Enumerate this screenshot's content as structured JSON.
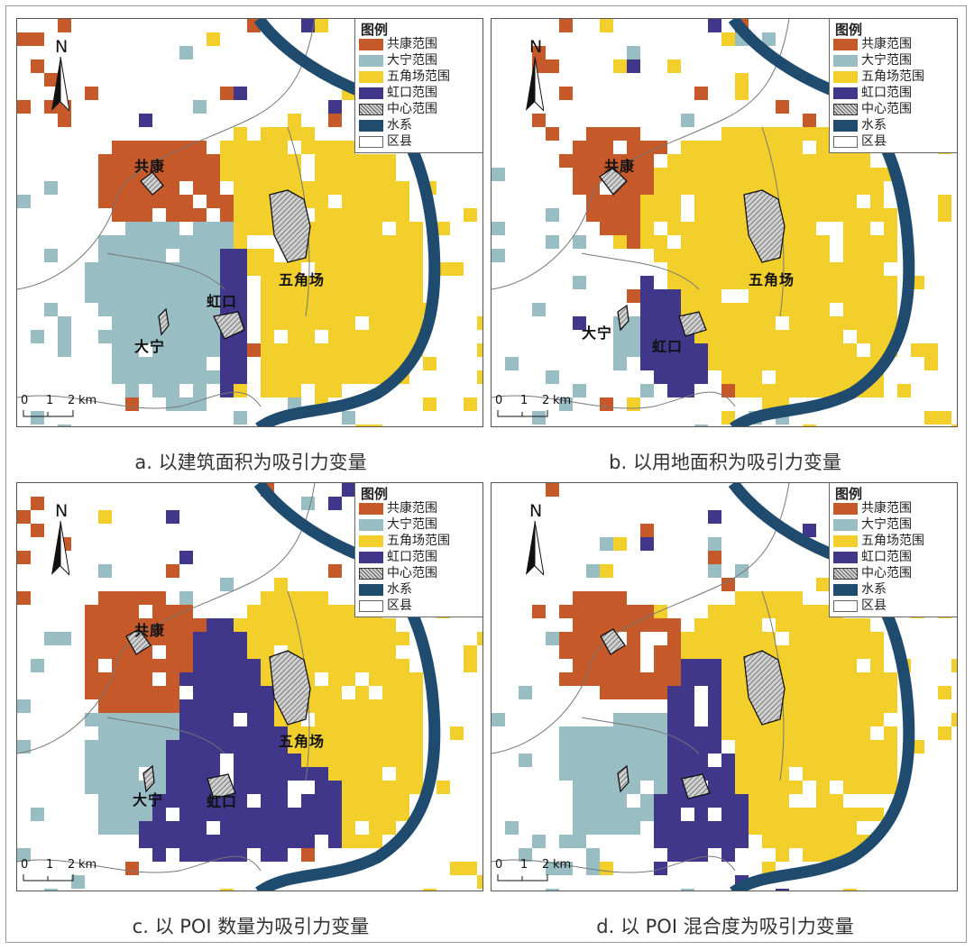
{
  "legend": {
    "title": "图例",
    "items": [
      {
        "key": "gongkang",
        "label": "共康范围",
        "color": "#c5592a"
      },
      {
        "key": "daning",
        "label": "大宁范围",
        "color": "#98bec4"
      },
      {
        "key": "wujiaochang",
        "label": "五角场范围",
        "color": "#f2cf2a"
      },
      {
        "key": "hongkou",
        "label": "虹口范围",
        "color": "#40368a"
      },
      {
        "key": "center",
        "label": "中心范围",
        "color": "#b5b5b5"
      },
      {
        "key": "water",
        "label": "水系",
        "color": "#1f4b6e"
      },
      {
        "key": "district",
        "label": "区县",
        "color": "#ffffff"
      }
    ]
  },
  "north_label": "N",
  "scale": {
    "t0": "0",
    "t1": "1",
    "t2": "2",
    "unit": "km"
  },
  "panels": [
    {
      "id": "a",
      "caption": "a. 以建筑面积为吸引力变量",
      "places": {
        "gongkang": "共康",
        "daning": "大宁",
        "wujiaochang": "五角场",
        "hongkou": "虹口"
      }
    },
    {
      "id": "b",
      "caption": "b. 以用地面积为吸引力变量",
      "places": {
        "gongkang": "共康",
        "daning": "大宁",
        "wujiaochang": "五角场",
        "hongkou": "虹口"
      }
    },
    {
      "id": "c",
      "caption": "c. 以 POI 数量为吸引力变量",
      "places": {
        "gongkang": "共康",
        "daning": "大宁",
        "wujiaochang": "五角场",
        "hongkou": "虹口"
      }
    },
    {
      "id": "d",
      "caption": "d. 以 POI 混合度为吸引力变量",
      "places": {
        "gongkang": "",
        "daning": "",
        "wujiaochang": "",
        "hongkou": ""
      }
    }
  ]
}
